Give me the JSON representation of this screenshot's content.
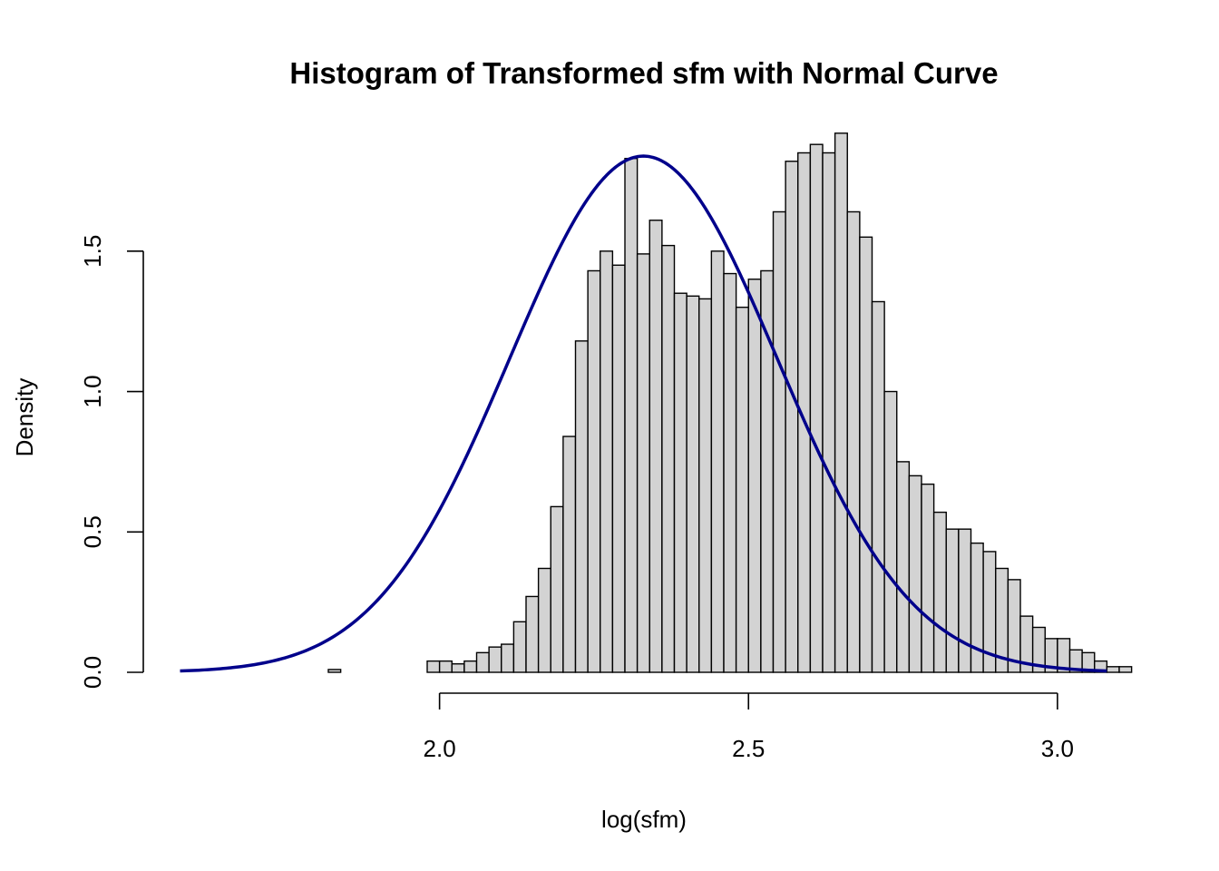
{
  "chart_data": {
    "type": "bar",
    "title": "Histogram of Transformed sfm with Normal Curve",
    "xlabel": "log(sfm)",
    "ylabel": "Density",
    "xlim": [
      1.5,
      3.1
    ],
    "ylim": [
      0,
      1.9
    ],
    "x_ticks": [
      2.0,
      2.5,
      3.0
    ],
    "x_tick_labels": [
      "2.0",
      "2.5",
      "3.0"
    ],
    "y_ticks": [
      0.0,
      0.5,
      1.0,
      1.5
    ],
    "y_tick_labels": [
      "0.0",
      "0.5",
      "1.0",
      "1.5"
    ],
    "bin_width": 0.02,
    "bin_start": 1.5,
    "grid": false,
    "legend": "none",
    "bar_fill": "#d3d3d3",
    "bar_stroke": "#000000",
    "curve_color": "#00008b",
    "values": [
      0.0,
      0.0,
      0.0,
      0.0,
      0.0,
      0.0,
      0.0,
      0.0,
      0.0,
      0.0,
      0.0,
      0.0,
      0.0,
      0.0,
      0.0,
      0.0,
      0.01,
      0.0,
      0.0,
      0.0,
      0.0,
      0.0,
      0.0,
      0.0,
      0.04,
      0.04,
      0.03,
      0.04,
      0.07,
      0.09,
      0.1,
      0.18,
      0.27,
      0.37,
      0.59,
      0.84,
      1.18,
      1.43,
      1.5,
      1.45,
      1.83,
      1.49,
      1.61,
      1.52,
      1.35,
      1.34,
      1.33,
      1.5,
      1.42,
      1.3,
      1.4,
      1.43,
      1.64,
      1.82,
      1.85,
      1.88,
      1.85,
      1.92,
      1.64,
      1.55,
      1.32,
      1.0,
      0.75,
      0.7,
      0.67,
      0.57,
      0.51,
      0.51,
      0.46,
      0.43,
      0.37,
      0.33,
      0.2,
      0.16,
      0.12,
      0.12,
      0.08,
      0.07,
      0.04,
      0.02,
      0.02,
      0.0
    ],
    "series": [
      {
        "type": "line",
        "mean": 2.33,
        "sd": 0.217
      }
    ]
  }
}
